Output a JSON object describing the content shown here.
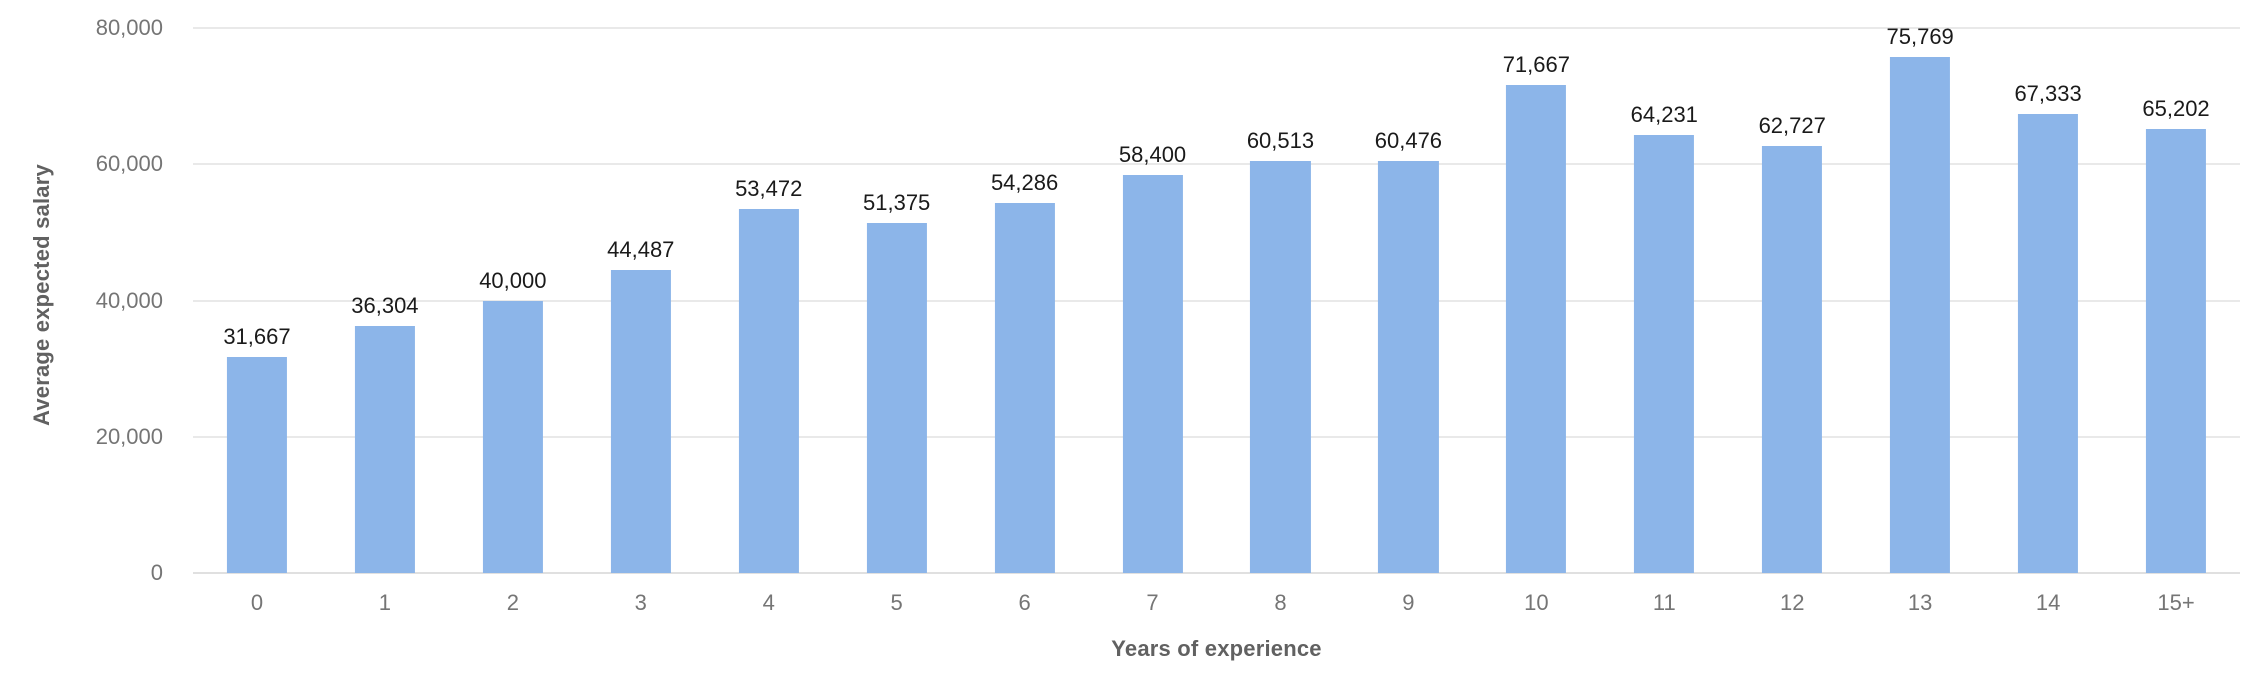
{
  "chart_data": {
    "type": "bar",
    "title": "",
    "xlabel": "Years of experience",
    "ylabel": "Average expected salary",
    "categories": [
      "0",
      "1",
      "2",
      "3",
      "4",
      "5",
      "6",
      "7",
      "8",
      "9",
      "10",
      "11",
      "12",
      "13",
      "14",
      "15+"
    ],
    "values": [
      31667,
      36304,
      40000,
      44487,
      53472,
      51375,
      54286,
      58400,
      60513,
      60476,
      71667,
      64231,
      62727,
      75769,
      67333,
      65202
    ],
    "value_labels": [
      "31,667",
      "36,304",
      "40,000",
      "44,487",
      "53,472",
      "51,375",
      "54,286",
      "58,400",
      "60,513",
      "60,476",
      "71,667",
      "64,231",
      "62,727",
      "75,769",
      "67,333",
      "65,202"
    ],
    "ylim": [
      0,
      80000
    ],
    "yticks": [
      0,
      20000,
      40000,
      60000,
      80000
    ],
    "ytick_labels": [
      "0",
      "20,000",
      "40,000",
      "60,000",
      "80,000"
    ],
    "grid": true,
    "legend": "none",
    "colors": {
      "bar": "#8CB5E9",
      "value_label": "#1a1a1a",
      "tick_label": "#757575",
      "axis_title": "#616161",
      "gridline": "#e9e9e9",
      "background": "#ffffff"
    }
  }
}
